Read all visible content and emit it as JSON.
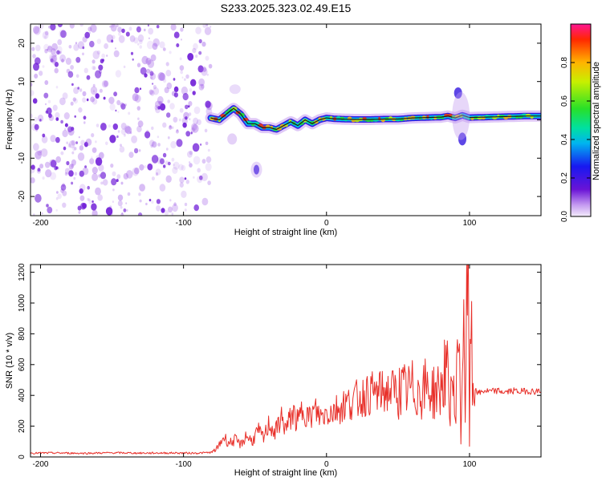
{
  "title": "S233.2025.323.02.49.E15",
  "colors": {
    "line": "#e8302a",
    "frame": "#000000",
    "noise": "#9a55e6",
    "noise_dark": "#6a14d6",
    "ridge": "#1a1a1a"
  },
  "chart_data": [
    {
      "type": "heatmap",
      "name": "spectrogram",
      "title": "",
      "xlabel": "Height of straight line (km)",
      "ylabel": "Frequency (Hz)",
      "xlim": [
        -207,
        150
      ],
      "ylim": [
        -25,
        25
      ],
      "x_ticks": [
        -200,
        -100,
        0,
        100
      ],
      "x_tick_labels": [
        "-200",
        "-100",
        "0",
        "100"
      ],
      "y_ticks": [
        -20,
        -10,
        0,
        10,
        20
      ],
      "y_tick_labels": [
        "-20",
        "-10",
        "0",
        "10",
        "20"
      ],
      "noise_region_x": [
        -207,
        -81
      ],
      "ridge": {
        "x": [
          -81,
          -75,
          -70,
          -65,
          -60,
          -55,
          -50,
          -45,
          -40,
          -35,
          -30,
          -25,
          -20,
          -15,
          -10,
          -5,
          0,
          5,
          10,
          20,
          30,
          40,
          50,
          60,
          70,
          80,
          85,
          90,
          95,
          100,
          110,
          120,
          130,
          140,
          150
        ],
        "y": [
          0.5,
          0.0,
          1.5,
          3.0,
          1.5,
          -1.0,
          -1.0,
          -2.0,
          -2.0,
          -2.5,
          -1.5,
          -0.5,
          -1.5,
          0.0,
          -1.0,
          0.0,
          0.5,
          0.3,
          0.2,
          0.1,
          0.1,
          0.2,
          0.2,
          0.5,
          0.6,
          0.7,
          1.0,
          0.5,
          1.2,
          0.6,
          0.7,
          0.8,
          0.9,
          1.0,
          1.0
        ]
      },
      "colorbar": {
        "label": "Normalized spectral amplitude",
        "range": [
          0,
          1
        ],
        "ticks": [
          0.0,
          0.2,
          0.4,
          0.6,
          0.8
        ],
        "tick_labels": [
          "0.0",
          "0.2",
          "0.4",
          "0.6",
          "0.8"
        ]
      }
    },
    {
      "type": "line",
      "name": "snr",
      "title": "",
      "xlabel": "Height of straight line (km)",
      "ylabel": "SNR (10 * v/v)",
      "xlim": [
        -207,
        150
      ],
      "ylim": [
        0,
        1250
      ],
      "x_ticks": [
        -200,
        -100,
        0,
        100
      ],
      "x_tick_labels": [
        "-200",
        "-100",
        "0",
        "100"
      ],
      "y_ticks": [
        0,
        200,
        400,
        600,
        800,
        1000,
        1200
      ],
      "y_tick_labels": [
        "0",
        "200",
        "400",
        "600",
        "800",
        "1000",
        "1200"
      ],
      "series": [
        {
          "name": "SNR",
          "x": [
            -207,
            -190,
            -170,
            -150,
            -130,
            -110,
            -90,
            -80,
            -76,
            -72,
            -68,
            -64,
            -60,
            -56,
            -52,
            -48,
            -44,
            -40,
            -36,
            -32,
            -28,
            -24,
            -20,
            -16,
            -12,
            -8,
            -4,
            0,
            5,
            10,
            15,
            20,
            25,
            30,
            35,
            40,
            45,
            50,
            55,
            60,
            65,
            70,
            75,
            80,
            84,
            86,
            88,
            90,
            92,
            94,
            96,
            97,
            98,
            99,
            100,
            101,
            102,
            104,
            106,
            110,
            115,
            120,
            125,
            130,
            135,
            140,
            145,
            150
          ],
          "y": [
            25,
            26,
            24,
            27,
            25,
            26,
            25,
            30,
            60,
            130,
            90,
            110,
            80,
            140,
            100,
            170,
            120,
            220,
            150,
            260,
            180,
            290,
            220,
            330,
            250,
            300,
            260,
            290,
            300,
            330,
            350,
            370,
            390,
            410,
            415,
            420,
            430,
            430,
            425,
            440,
            430,
            450,
            420,
            440,
            600,
            300,
            560,
            200,
            950,
            120,
            1030,
            300,
            860,
            1230,
            100,
            980,
            420,
            460,
            410,
            430,
            425,
            430,
            420,
            430,
            425,
            430,
            425,
            430
          ]
        }
      ]
    }
  ]
}
